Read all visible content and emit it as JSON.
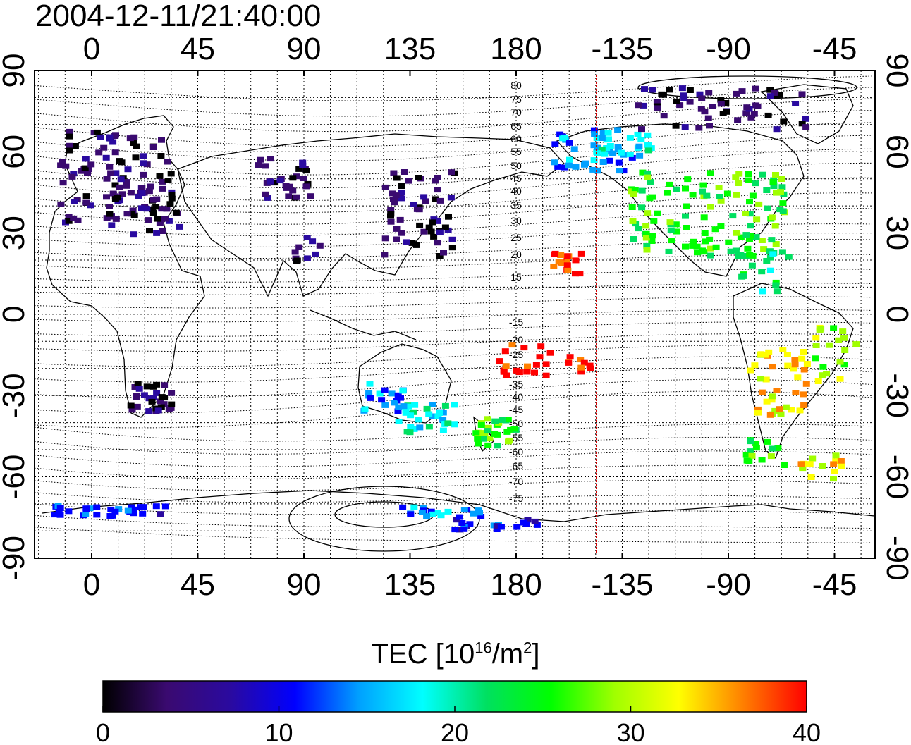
{
  "title": "2004-12-11/21:40:00",
  "map": {
    "top_ticks": [
      "0",
      "45",
      "90",
      "135",
      "180",
      "-135",
      "-90",
      "-45"
    ],
    "bottom_ticks": [
      "0",
      "45",
      "90",
      "135",
      "180",
      "-135",
      "-90",
      "-45"
    ],
    "left_ticks": [
      "90",
      "60",
      "30",
      "0",
      "-30",
      "-60",
      "-90"
    ],
    "right_ticks": [
      "90",
      "60",
      "30",
      "0",
      "-30",
      "-60",
      "-90"
    ],
    "contour_labels": [
      "80",
      "75",
      "70",
      "65",
      "60",
      "55",
      "50",
      "45",
      "40",
      "35",
      "30",
      "25",
      "20",
      "15",
      "-15",
      "-20",
      "-25",
      "-30",
      "-35",
      "-40",
      "-45",
      "-50",
      "-55",
      "-60",
      "-65",
      "-70",
      "-75"
    ],
    "terminator_color": "#d40000"
  },
  "colorbar": {
    "label_main": "TEC  [10",
    "label_exp1": "16",
    "label_mid": "/m",
    "label_exp2": "2",
    "label_end": "]",
    "ticks": [
      "0",
      "10",
      "20",
      "30",
      "40"
    ],
    "range": [
      0,
      40
    ],
    "colors": [
      "#000000",
      "#3a0a70",
      "#2a0aa0",
      "#0000ff",
      "#00a0ff",
      "#00ffff",
      "#00e060",
      "#00ff00",
      "#a0ff00",
      "#ffff00",
      "#ff8000",
      "#ff0000"
    ]
  }
}
